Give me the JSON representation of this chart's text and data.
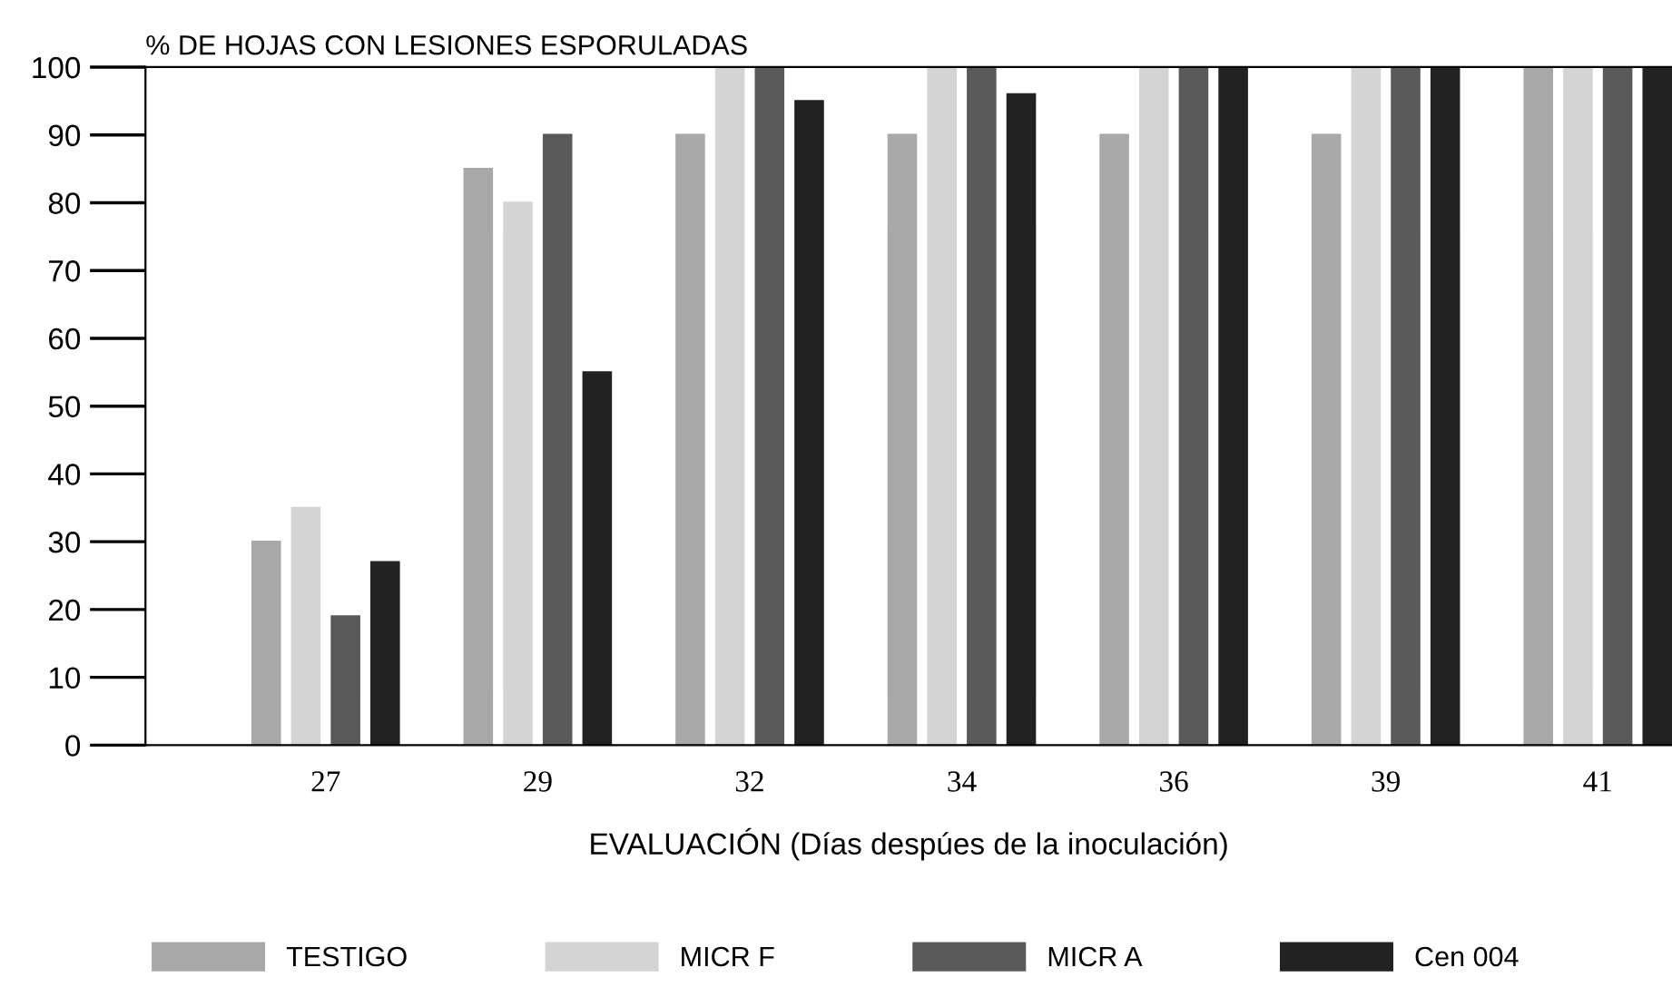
{
  "chart_data": {
    "type": "bar",
    "ylabel": "% DE HOJAS CON LESIONES ESPORULADAS",
    "xlabel": "EVALUACIÓN (Días despúes de la inoculación)",
    "categories": [
      "27",
      "29",
      "32",
      "34",
      "36",
      "39",
      "41"
    ],
    "series": [
      {
        "name": "TESTIGO",
        "color": "#a8a8a8",
        "values": [
          30,
          85,
          90,
          90,
          90,
          90,
          100
        ]
      },
      {
        "name": "MICR F",
        "color": "#d4d4d4",
        "values": [
          35,
          80,
          100,
          100,
          100,
          100,
          100
        ]
      },
      {
        "name": "MICR A",
        "color": "#5a5a5a",
        "values": [
          19,
          90,
          100,
          100,
          100,
          100,
          100
        ]
      },
      {
        "name": "Cen 004",
        "color": "#222222",
        "values": [
          27,
          55,
          95,
          96,
          100,
          100,
          100
        ]
      }
    ],
    "ylim": [
      0,
      100
    ],
    "yticks": [
      0,
      10,
      20,
      30,
      40,
      50,
      60,
      70,
      80,
      90,
      100
    ],
    "grid": false,
    "legend": "bottom"
  }
}
